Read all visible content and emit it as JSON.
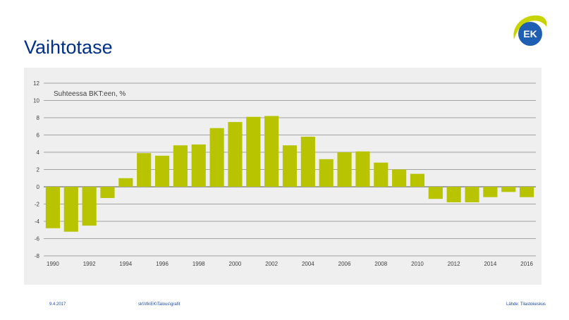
{
  "page": {
    "title": "Vaihtotase",
    "logo_text": "EK"
  },
  "footer": {
    "date": "9.4.2017",
    "path": "sk\\\\\\fk\\EK\\Talous\\grafit",
    "source": "Lähde: Tilastokeskus"
  },
  "colors": {
    "title": "#003087",
    "bar": "#b8c400",
    "panel": "#efefef",
    "logo_blue": "#1e5fb4",
    "logo_lime": "#c8d400"
  },
  "chart_data": {
    "type": "bar",
    "annotation": "Suhteessa BKT:een, %",
    "categories": [
      1990,
      1991,
      1992,
      1993,
      1994,
      1995,
      1996,
      1997,
      1998,
      1999,
      2000,
      2001,
      2002,
      2003,
      2004,
      2005,
      2006,
      2007,
      2008,
      2009,
      2010,
      2011,
      2012,
      2013,
      2014,
      2015,
      2016
    ],
    "values": [
      -4.8,
      -5.2,
      -4.5,
      -1.3,
      1.0,
      3.9,
      3.6,
      4.8,
      4.9,
      6.8,
      7.5,
      8.1,
      8.2,
      4.8,
      5.8,
      3.2,
      4.0,
      4.1,
      2.8,
      2.0,
      1.5,
      -1.4,
      -1.8,
      -1.8,
      -1.2,
      -0.6,
      -1.2
    ],
    "x_tick_labels": [
      "1990",
      "1992",
      "1994",
      "1996",
      "1998",
      "2000",
      "2002",
      "2004",
      "2006",
      "2008",
      "2010",
      "2012",
      "2014",
      "2016"
    ],
    "y_tick_labels": [
      "12",
      "10",
      "8",
      "6",
      "4",
      "2",
      "0",
      "-2",
      "-4",
      "-6",
      "-8"
    ],
    "ylim": [
      -8,
      12
    ],
    "grid": true,
    "title": "",
    "xlabel": "",
    "ylabel": ""
  }
}
